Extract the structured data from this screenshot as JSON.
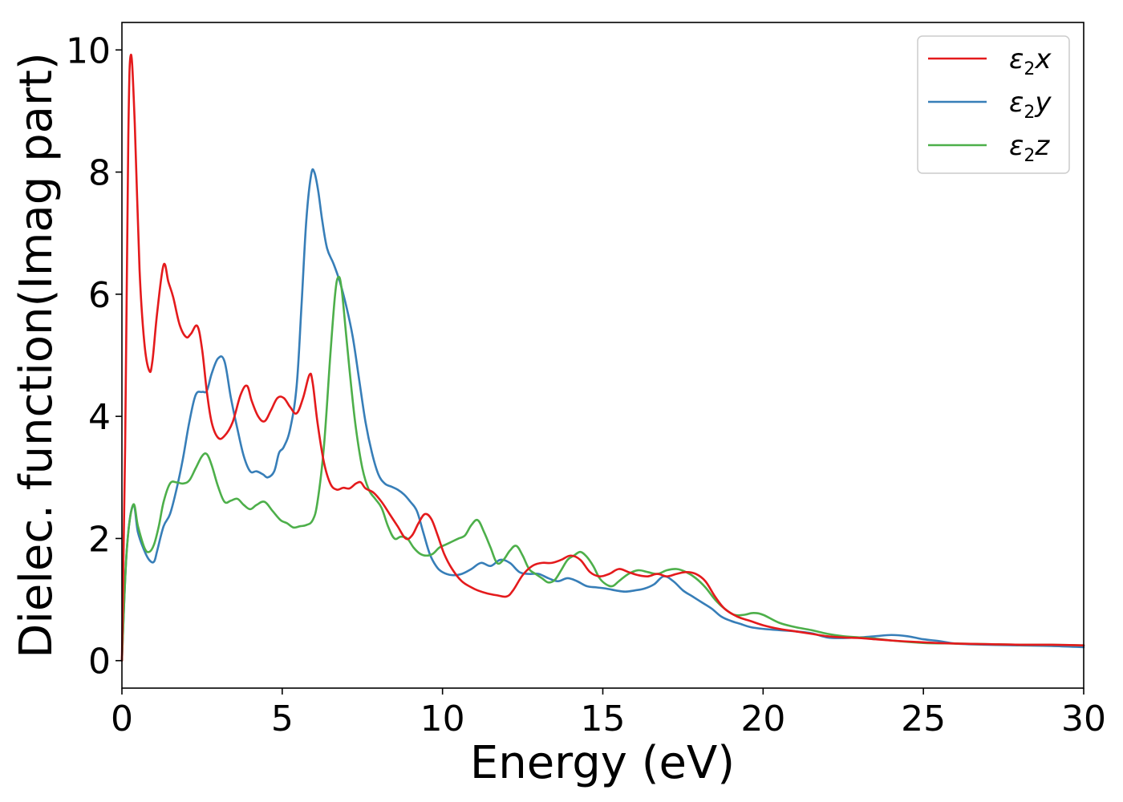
{
  "chart_data": {
    "type": "line",
    "xlabel": "Energy (eV)",
    "ylabel": "Dielec. function(Imag part)",
    "xlim": [
      0,
      30
    ],
    "ylim": [
      -0.45,
      10.45
    ],
    "xticks": [
      0,
      5,
      10,
      15,
      20,
      25,
      30
    ],
    "yticks": [
      0,
      2,
      4,
      6,
      8,
      10
    ],
    "grid": false,
    "legend_position": "top-right",
    "series": [
      {
        "name": "ε2x",
        "legend_main": "ε",
        "legend_sub": "2",
        "legend_var": "x",
        "color": "#e41a1c",
        "x": [
          0,
          0.1,
          0.2,
          0.28,
          0.4,
          0.55,
          0.7,
          0.85,
          0.95,
          1.1,
          1.3,
          1.45,
          1.6,
          1.8,
          2.0,
          2.15,
          2.35,
          2.5,
          2.65,
          2.8,
          3.0,
          3.2,
          3.45,
          3.7,
          3.9,
          4.05,
          4.25,
          4.45,
          4.65,
          4.85,
          5.05,
          5.25,
          5.45,
          5.65,
          5.85,
          5.95,
          6.1,
          6.3,
          6.5,
          6.7,
          6.9,
          7.1,
          7.3,
          7.45,
          7.6,
          7.85,
          8.1,
          8.35,
          8.6,
          8.85,
          9.05,
          9.25,
          9.45,
          9.65,
          9.85,
          10.05,
          10.3,
          10.6,
          10.9,
          11.1,
          11.4,
          11.7,
          12.0,
          12.2,
          12.5,
          12.8,
          13.1,
          13.4,
          13.7,
          14.0,
          14.3,
          14.6,
          14.9,
          15.2,
          15.5,
          15.8,
          16.1,
          16.4,
          16.7,
          17.0,
          17.3,
          17.6,
          17.9,
          18.2,
          18.5,
          18.8,
          19.2,
          19.6,
          20.0,
          20.5,
          21.0,
          21.5,
          22.0,
          22.5,
          23.0,
          23.5,
          24.0,
          25.0,
          26.0,
          27.0,
          28.0,
          29.0,
          30.0
        ],
        "y": [
          0,
          3.5,
          8.6,
          9.92,
          8.8,
          6.4,
          5.2,
          4.75,
          4.9,
          5.7,
          6.48,
          6.2,
          5.95,
          5.5,
          5.3,
          5.35,
          5.48,
          5.1,
          4.4,
          3.9,
          3.65,
          3.68,
          3.9,
          4.35,
          4.5,
          4.25,
          4.0,
          3.92,
          4.1,
          4.3,
          4.3,
          4.15,
          4.05,
          4.3,
          4.68,
          4.55,
          3.9,
          3.25,
          2.9,
          2.8,
          2.83,
          2.82,
          2.9,
          2.92,
          2.82,
          2.75,
          2.6,
          2.4,
          2.2,
          2.0,
          2.05,
          2.25,
          2.4,
          2.32,
          2.05,
          1.75,
          1.5,
          1.3,
          1.2,
          1.15,
          1.1,
          1.07,
          1.05,
          1.15,
          1.4,
          1.55,
          1.6,
          1.6,
          1.65,
          1.72,
          1.65,
          1.45,
          1.38,
          1.42,
          1.5,
          1.45,
          1.4,
          1.38,
          1.42,
          1.38,
          1.42,
          1.45,
          1.42,
          1.3,
          1.05,
          0.85,
          0.72,
          0.65,
          0.58,
          0.52,
          0.48,
          0.44,
          0.4,
          0.38,
          0.37,
          0.35,
          0.33,
          0.3,
          0.28,
          0.27,
          0.26,
          0.26,
          0.25
        ]
      },
      {
        "name": "ε2y",
        "legend_main": "ε",
        "legend_sub": "2",
        "legend_var": "y",
        "color": "#377eb8",
        "x": [
          0,
          0.15,
          0.35,
          0.5,
          0.7,
          0.85,
          1.0,
          1.1,
          1.3,
          1.5,
          1.7,
          1.9,
          2.1,
          2.3,
          2.5,
          2.65,
          2.8,
          3.0,
          3.2,
          3.4,
          3.6,
          3.8,
          4.0,
          4.2,
          4.4,
          4.55,
          4.75,
          4.9,
          5.05,
          5.25,
          5.45,
          5.6,
          5.75,
          5.9,
          6.0,
          6.12,
          6.25,
          6.4,
          6.6,
          6.8,
          7.0,
          7.2,
          7.4,
          7.6,
          7.8,
          8.0,
          8.2,
          8.4,
          8.6,
          8.8,
          9.0,
          9.2,
          9.4,
          9.6,
          9.8,
          10.0,
          10.3,
          10.6,
          10.9,
          11.2,
          11.5,
          11.8,
          12.1,
          12.4,
          12.7,
          13.0,
          13.3,
          13.6,
          13.9,
          14.2,
          14.5,
          14.8,
          15.1,
          15.4,
          15.7,
          16.0,
          16.3,
          16.6,
          16.9,
          17.2,
          17.5,
          17.8,
          18.1,
          18.4,
          18.7,
          19.0,
          19.3,
          19.6,
          20.0,
          20.5,
          21.0,
          21.5,
          22.0,
          22.5,
          23.0,
          23.5,
          24.0,
          24.5,
          25.0,
          25.5,
          26.0,
          27.0,
          28.0,
          29.0,
          30.0
        ],
        "y": [
          0,
          1.8,
          2.55,
          2.1,
          1.8,
          1.65,
          1.62,
          1.8,
          2.2,
          2.4,
          2.8,
          3.3,
          3.9,
          4.35,
          4.4,
          4.42,
          4.7,
          4.95,
          4.9,
          4.3,
          3.8,
          3.35,
          3.1,
          3.1,
          3.05,
          3.0,
          3.1,
          3.4,
          3.5,
          3.8,
          4.5,
          5.8,
          7.2,
          7.95,
          8.0,
          7.7,
          7.2,
          6.75,
          6.5,
          6.2,
          5.8,
          5.3,
          4.6,
          3.9,
          3.4,
          3.05,
          2.9,
          2.85,
          2.8,
          2.72,
          2.6,
          2.45,
          2.1,
          1.75,
          1.55,
          1.45,
          1.4,
          1.42,
          1.5,
          1.6,
          1.55,
          1.65,
          1.6,
          1.45,
          1.42,
          1.42,
          1.35,
          1.3,
          1.35,
          1.3,
          1.22,
          1.2,
          1.18,
          1.15,
          1.13,
          1.15,
          1.18,
          1.25,
          1.38,
          1.3,
          1.15,
          1.05,
          0.95,
          0.85,
          0.72,
          0.65,
          0.6,
          0.55,
          0.52,
          0.5,
          0.48,
          0.45,
          0.38,
          0.37,
          0.38,
          0.4,
          0.42,
          0.4,
          0.35,
          0.32,
          0.28,
          0.26,
          0.25,
          0.24,
          0.22
        ]
      },
      {
        "name": "ε2z",
        "legend_main": "ε",
        "legend_sub": "2",
        "legend_var": "z",
        "color": "#4daf4a",
        "x": [
          0,
          0.15,
          0.35,
          0.5,
          0.7,
          0.85,
          1.0,
          1.15,
          1.3,
          1.5,
          1.7,
          1.9,
          2.1,
          2.3,
          2.5,
          2.65,
          2.8,
          3.0,
          3.2,
          3.4,
          3.6,
          3.8,
          4.0,
          4.2,
          4.45,
          4.7,
          4.95,
          5.15,
          5.35,
          5.55,
          5.75,
          5.95,
          6.1,
          6.3,
          6.5,
          6.65,
          6.75,
          6.85,
          7.0,
          7.15,
          7.3,
          7.5,
          7.7,
          7.9,
          8.1,
          8.3,
          8.5,
          8.7,
          8.9,
          9.1,
          9.3,
          9.5,
          9.7,
          9.9,
          10.1,
          10.3,
          10.5,
          10.7,
          10.9,
          11.1,
          11.3,
          11.5,
          11.7,
          11.9,
          12.1,
          12.3,
          12.5,
          12.7,
          12.9,
          13.1,
          13.3,
          13.5,
          13.7,
          13.9,
          14.1,
          14.3,
          14.5,
          14.7,
          14.9,
          15.1,
          15.3,
          15.5,
          15.8,
          16.1,
          16.4,
          16.7,
          17.0,
          17.3,
          17.6,
          17.9,
          18.2,
          18.5,
          18.8,
          19.1,
          19.4,
          19.7,
          20.0,
          20.5,
          21.0,
          21.5,
          22.0,
          22.5,
          23.0,
          23.5,
          24.0,
          25.0,
          26.0,
          27.0,
          28.0,
          29.0,
          30.0
        ],
        "y": [
          0,
          1.8,
          2.55,
          2.2,
          1.85,
          1.78,
          1.9,
          2.2,
          2.6,
          2.9,
          2.92,
          2.9,
          2.95,
          3.15,
          3.35,
          3.38,
          3.2,
          2.85,
          2.6,
          2.62,
          2.65,
          2.55,
          2.48,
          2.55,
          2.6,
          2.45,
          2.3,
          2.25,
          2.18,
          2.2,
          2.22,
          2.3,
          2.6,
          3.5,
          5.0,
          6.0,
          6.28,
          6.1,
          5.3,
          4.5,
          3.8,
          3.15,
          2.8,
          2.65,
          2.5,
          2.2,
          2.0,
          2.03,
          2.0,
          1.85,
          1.75,
          1.72,
          1.75,
          1.85,
          1.9,
          1.95,
          2.0,
          2.05,
          2.22,
          2.3,
          2.1,
          1.85,
          1.6,
          1.65,
          1.8,
          1.88,
          1.72,
          1.5,
          1.42,
          1.35,
          1.28,
          1.32,
          1.48,
          1.65,
          1.72,
          1.78,
          1.7,
          1.55,
          1.35,
          1.25,
          1.22,
          1.3,
          1.42,
          1.48,
          1.45,
          1.42,
          1.48,
          1.5,
          1.45,
          1.35,
          1.2,
          1.0,
          0.85,
          0.75,
          0.75,
          0.78,
          0.75,
          0.62,
          0.55,
          0.5,
          0.44,
          0.4,
          0.38,
          0.36,
          0.33,
          0.29,
          0.28,
          0.27,
          0.26,
          0.26,
          0.25
        ]
      }
    ]
  }
}
